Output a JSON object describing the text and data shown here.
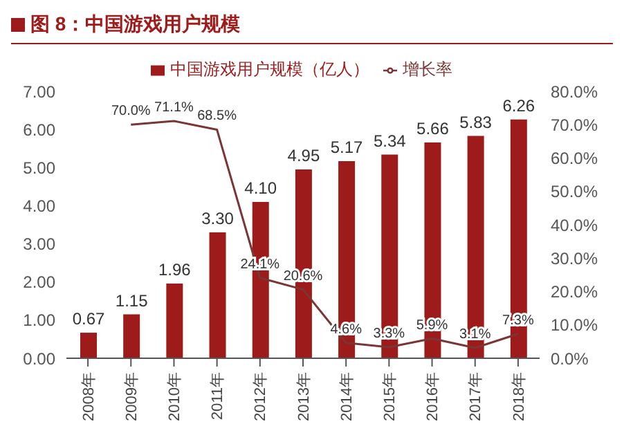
{
  "chart_data": {
    "type": "bar",
    "title": "图 8：中国游戏用户规模",
    "categories": [
      "2008年",
      "2009年",
      "2010年",
      "2011年",
      "2012年",
      "2013年",
      "2014年",
      "2015年",
      "2016年",
      "2017年",
      "2018年"
    ],
    "series": [
      {
        "name": "中国游戏用户规模（亿人）",
        "color": "#9e1b1b",
        "values": [
          0.67,
          1.15,
          1.96,
          3.3,
          4.1,
          4.95,
          5.17,
          5.34,
          5.66,
          5.83,
          6.26
        ],
        "value_labels": [
          "0.67",
          "1.15",
          "1.96",
          "3.30",
          "4.10",
          "4.95",
          "5.17",
          "5.34",
          "5.66",
          "5.83",
          "6.26"
        ]
      },
      {
        "name": "增长率",
        "type": "line",
        "axis": "y2",
        "color": "#7b3535",
        "values": [
          null,
          70.0,
          71.1,
          68.5,
          24.1,
          20.6,
          4.6,
          3.3,
          5.9,
          3.1,
          7.3
        ],
        "value_labels": [
          null,
          "70.0%",
          "71.1%",
          "68.5%",
          "24.1%",
          "20.6%",
          "4.6%",
          "3.3%",
          "5.9%",
          "3.1%",
          "7.3%"
        ]
      }
    ],
    "ylim": [
      0,
      7
    ],
    "yticks": [
      {
        "value": 0,
        "label": "0.00"
      },
      {
        "value": 1,
        "label": "1.00"
      },
      {
        "value": 2,
        "label": "2.00"
      },
      {
        "value": 3,
        "label": "3.00"
      },
      {
        "value": 4,
        "label": "4.00"
      },
      {
        "value": 5,
        "label": "5.00"
      },
      {
        "value": 6,
        "label": "6.00"
      },
      {
        "value": 7,
        "label": "7.00"
      }
    ],
    "y2lim": [
      0,
      80
    ],
    "y2ticks": [
      {
        "value": 0,
        "label": "0.0%"
      },
      {
        "value": 10,
        "label": "10.0%"
      },
      {
        "value": 20,
        "label": "20.0%"
      },
      {
        "value": 30,
        "label": "30.0%"
      },
      {
        "value": 40,
        "label": "40.0%"
      },
      {
        "value": 50,
        "label": "50.0%"
      },
      {
        "value": 60,
        "label": "60.0%"
      },
      {
        "value": 70,
        "label": "70.0%"
      },
      {
        "value": 80,
        "label": "80.0%"
      }
    ],
    "legend": "top",
    "grid": false,
    "marker": "none",
    "line_style": "solid"
  }
}
